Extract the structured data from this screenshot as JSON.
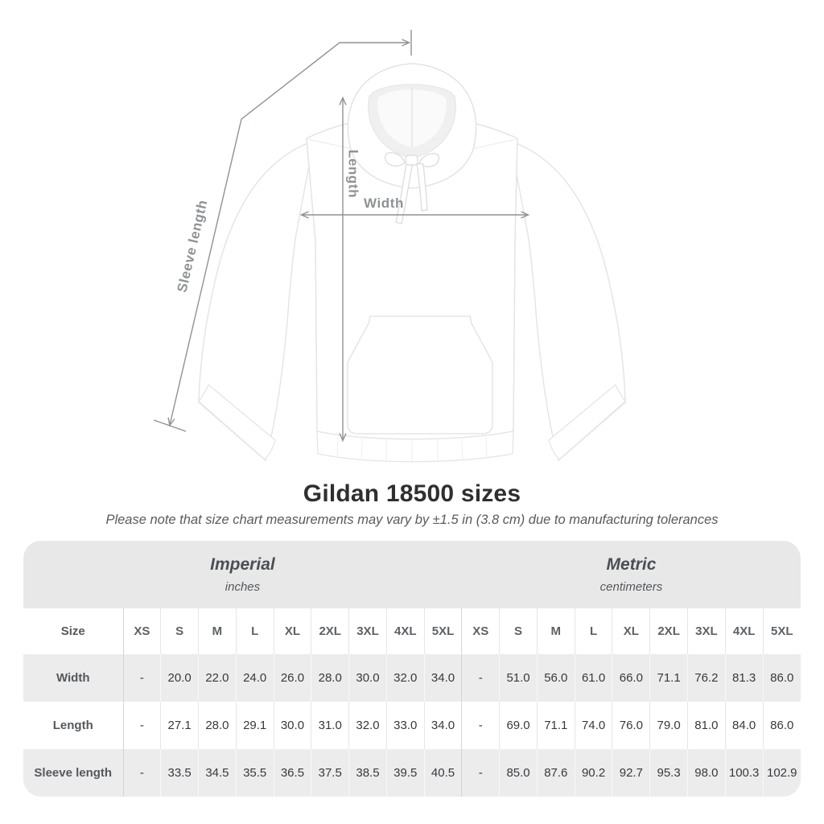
{
  "diagram": {
    "labels": {
      "length": "Length",
      "width": "Width",
      "sleeve": "Sleeve length"
    },
    "arrow_color": "#8f9193"
  },
  "title": "Gildan 18500 sizes",
  "subtitle": "Please note that size chart measurements may vary by ±1.5 in (3.8 cm) due to manufacturing tolerances",
  "table": {
    "size_col_header": "Size",
    "unit_systems": [
      {
        "label": "Imperial",
        "sublabel": "inches"
      },
      {
        "label": "Metric",
        "sublabel": "centimeters"
      }
    ],
    "sizes": [
      "XS",
      "S",
      "M",
      "L",
      "XL",
      "2XL",
      "3XL",
      "4XL",
      "5XL"
    ],
    "rows": [
      {
        "label": "Width",
        "imperial": [
          "-",
          "20.0",
          "22.0",
          "24.0",
          "26.0",
          "28.0",
          "30.0",
          "32.0",
          "34.0"
        ],
        "metric": [
          "-",
          "51.0",
          "56.0",
          "61.0",
          "66.0",
          "71.1",
          "76.2",
          "81.3",
          "86.0"
        ]
      },
      {
        "label": "Length",
        "imperial": [
          "-",
          "27.1",
          "28.0",
          "29.1",
          "30.0",
          "31.0",
          "32.0",
          "33.0",
          "34.0"
        ],
        "metric": [
          "-",
          "69.0",
          "71.1",
          "74.0",
          "76.0",
          "79.0",
          "81.0",
          "84.0",
          "86.0"
        ]
      },
      {
        "label": "Sleeve length",
        "imperial": [
          "-",
          "33.5",
          "34.5",
          "35.5",
          "36.5",
          "37.5",
          "38.5",
          "39.5",
          "40.5"
        ],
        "metric": [
          "-",
          "85.0",
          "87.6",
          "90.2",
          "92.7",
          "95.3",
          "98.0",
          "100.3",
          "102.9"
        ]
      }
    ]
  },
  "chart_data": {
    "type": "table",
    "title": "Gildan 18500 sizes",
    "note": "Please note that size chart measurements may vary by ±1.5 in (3.8 cm) due to manufacturing tolerances",
    "unit_groups": [
      {
        "name": "Imperial",
        "unit": "inches"
      },
      {
        "name": "Metric",
        "unit": "centimeters"
      }
    ],
    "sizes": [
      "XS",
      "S",
      "M",
      "L",
      "XL",
      "2XL",
      "3XL",
      "4XL",
      "5XL"
    ],
    "measurements": [
      {
        "name": "Width",
        "imperial_inches": [
          null,
          20.0,
          22.0,
          24.0,
          26.0,
          28.0,
          30.0,
          32.0,
          34.0
        ],
        "metric_cm": [
          null,
          51.0,
          56.0,
          61.0,
          66.0,
          71.1,
          76.2,
          81.3,
          86.0
        ]
      },
      {
        "name": "Length",
        "imperial_inches": [
          null,
          27.1,
          28.0,
          29.1,
          30.0,
          31.0,
          32.0,
          33.0,
          34.0
        ],
        "metric_cm": [
          null,
          69.0,
          71.1,
          74.0,
          76.0,
          79.0,
          81.0,
          84.0,
          86.0
        ]
      },
      {
        "name": "Sleeve length",
        "imperial_inches": [
          null,
          33.5,
          34.5,
          35.5,
          36.5,
          37.5,
          38.5,
          39.5,
          40.5
        ],
        "metric_cm": [
          null,
          85.0,
          87.6,
          90.2,
          92.7,
          95.3,
          98.0,
          100.3,
          102.9
        ]
      }
    ]
  }
}
